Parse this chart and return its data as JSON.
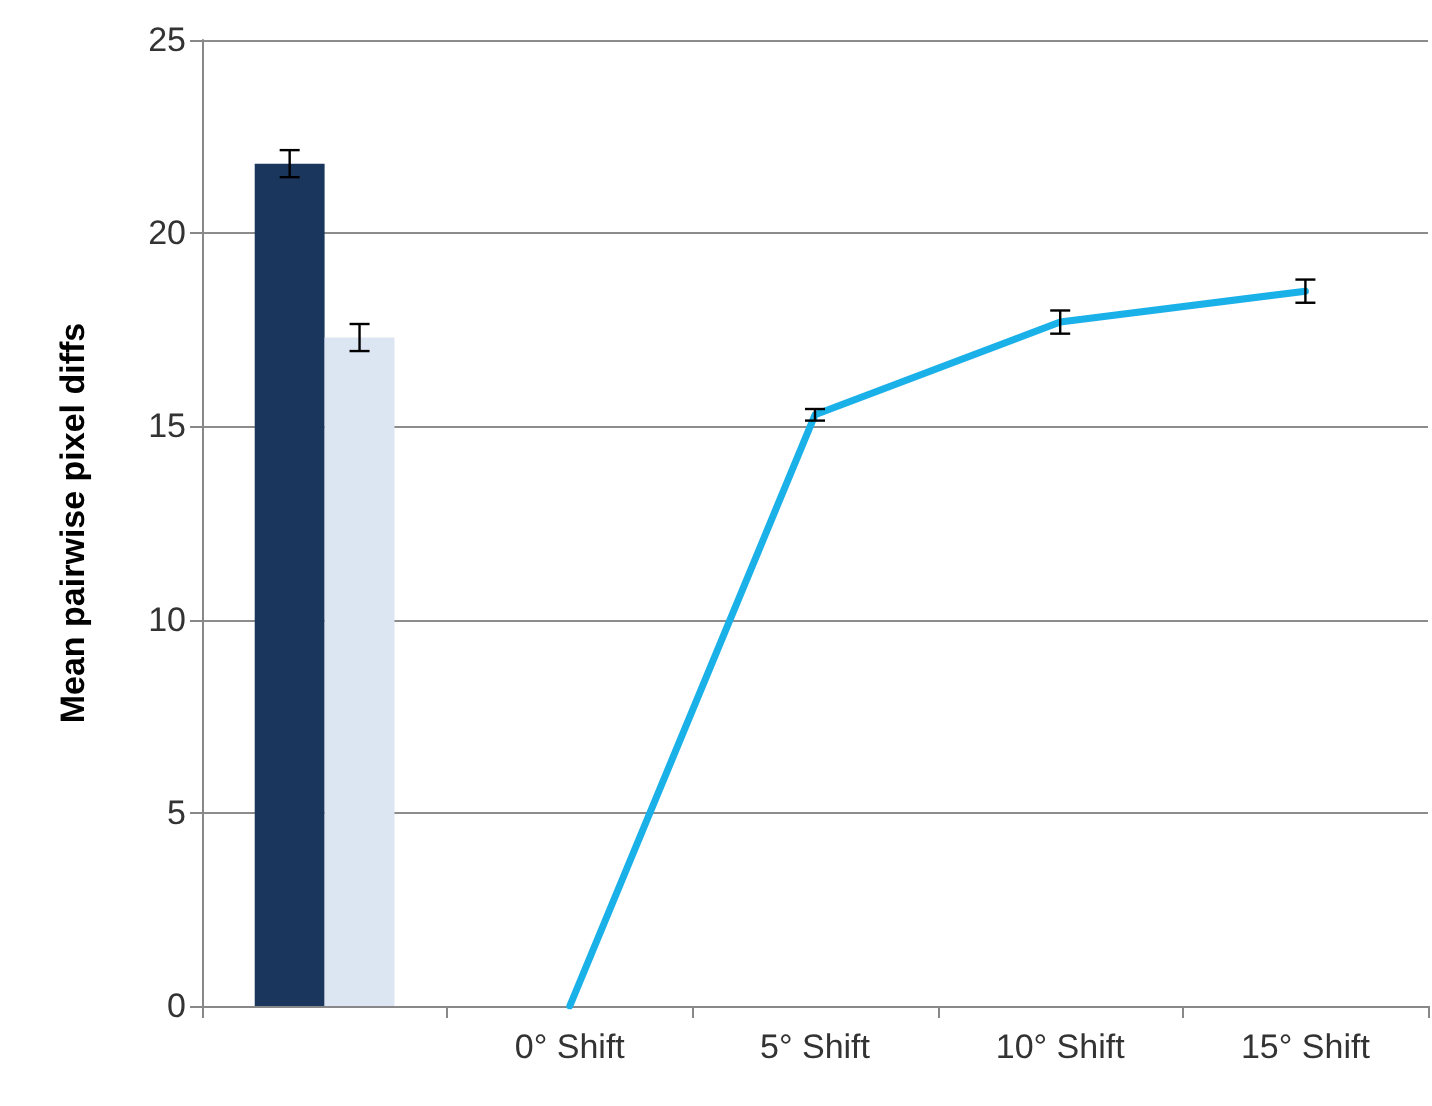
{
  "chart_data": {
    "type": "bar",
    "ylabel": "Mean pairwise pixel diffs",
    "categories": [
      null,
      "0° Shift",
      "5° Shift",
      "10° Shift",
      "15° Shift"
    ],
    "ylim": [
      0,
      25
    ],
    "yticks": [
      0,
      5,
      10,
      15,
      20,
      25
    ],
    "grid": "y",
    "marker": "none",
    "line_style": "solid",
    "series": [
      {
        "color": "#1b365d",
        "values": [
          21.8,
          null,
          null,
          null,
          null
        ],
        "errors": [
          0.35,
          null,
          null,
          null,
          null
        ]
      },
      {
        "color": "#dce6f2",
        "values": [
          17.3,
          null,
          null,
          null,
          null
        ],
        "errors": [
          0.35,
          null,
          null,
          null,
          null
        ]
      },
      {
        "type": "line",
        "color": "#1ab0e8",
        "values": [
          null,
          0,
          15.3,
          17.7,
          18.5
        ],
        "errors": [
          null,
          null,
          0.15,
          0.3,
          0.3
        ]
      }
    ]
  }
}
